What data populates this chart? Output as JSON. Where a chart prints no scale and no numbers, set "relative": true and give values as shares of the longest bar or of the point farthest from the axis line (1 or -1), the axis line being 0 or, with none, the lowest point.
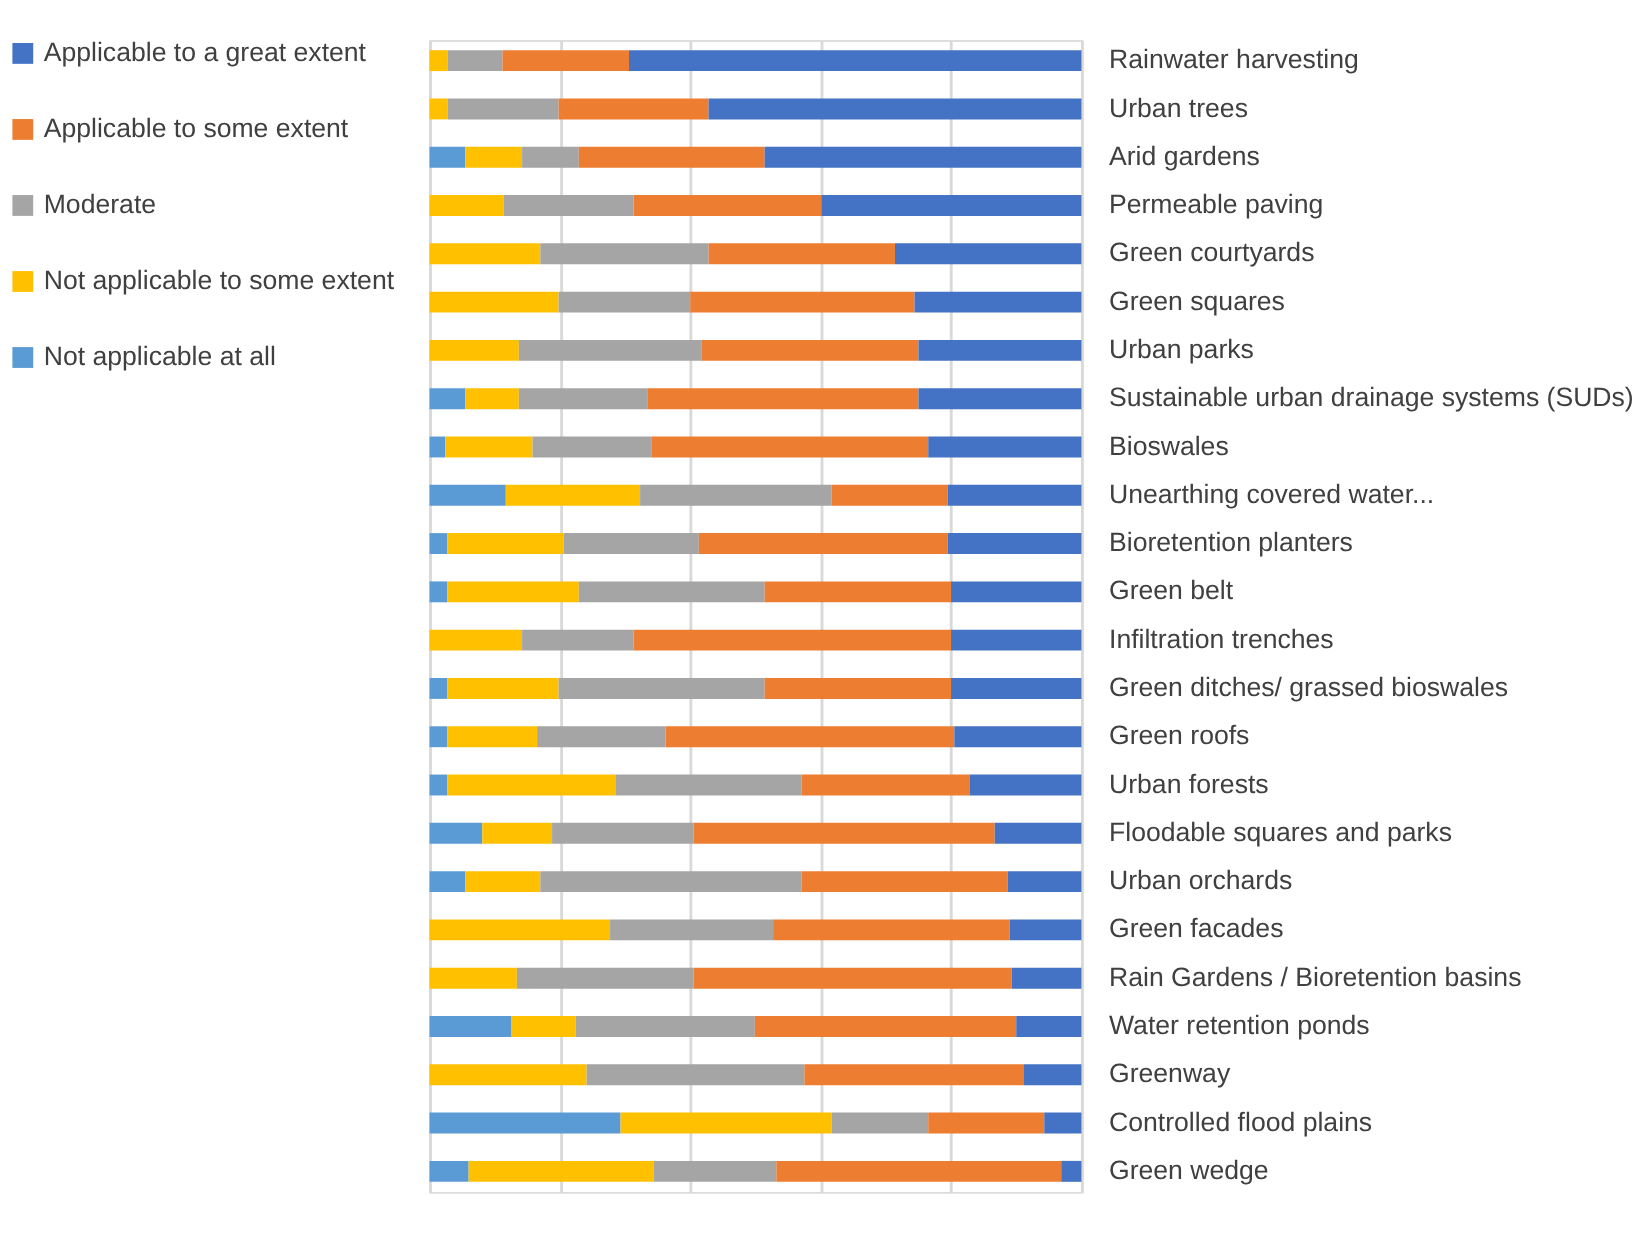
{
  "chart_data": {
    "type": "bar",
    "orientation": "horizontal",
    "stacked": true,
    "relative": true,
    "grid": "x",
    "legend": "left",
    "categories": [
      "Rainwater harvesting",
      "Urban trees",
      "Arid gardens",
      "Permeable paving",
      "Green courtyards",
      "Green squares",
      "Urban parks",
      "Sustainable urban drainage systems (SUDs)",
      "Bioswales",
      "Unearthing covered water...",
      "Bioretention planters",
      "Green belt",
      "Infiltration trenches",
      "Green ditches/ grassed bioswales",
      "Green roofs",
      "Urban forests",
      "Floodable squares and parks",
      "Urban orchards",
      "Green facades",
      "Rain Gardens / Bioretention basins",
      "Water retention ponds",
      "Greenway",
      "Controlled flood plains",
      "Green wedge"
    ],
    "series": [
      {
        "name": "Not applicable at all",
        "color": "#5b9bd5",
        "values": [
          0,
          0,
          0.055,
          0,
          0,
          0,
          0,
          0.055,
          0.024,
          0.117,
          0.027,
          0.027,
          0,
          0.027,
          0.027,
          0.027,
          0.081,
          0.055,
          0,
          0,
          0.125,
          0,
          0.293,
          0.06
        ]
      },
      {
        "name": "Not applicable to some extent",
        "color": "#ffc000",
        "values": [
          0.028,
          0.028,
          0.087,
          0.114,
          0.17,
          0.198,
          0.137,
          0.082,
          0.134,
          0.206,
          0.179,
          0.202,
          0.142,
          0.171,
          0.138,
          0.258,
          0.107,
          0.115,
          0.277,
          0.134,
          0.099,
          0.241,
          0.324,
          0.284
        ]
      },
      {
        "name": "Moderate",
        "color": "#a5a5a5",
        "values": [
          0.084,
          0.17,
          0.087,
          0.199,
          0.258,
          0.202,
          0.28,
          0.197,
          0.183,
          0.294,
          0.207,
          0.285,
          0.171,
          0.316,
          0.197,
          0.286,
          0.217,
          0.401,
          0.25,
          0.271,
          0.275,
          0.334,
          0.148,
          0.188
        ]
      },
      {
        "name": "Applicable to some extent",
        "color": "#ed7d31",
        "values": [
          0.194,
          0.23,
          0.285,
          0.288,
          0.286,
          0.344,
          0.333,
          0.416,
          0.424,
          0.178,
          0.382,
          0.286,
          0.487,
          0.286,
          0.443,
          0.258,
          0.462,
          0.316,
          0.363,
          0.488,
          0.401,
          0.336,
          0.178,
          0.437
        ]
      },
      {
        "name": "Applicable to a great extent",
        "color": "#4472c4",
        "values": [
          0.694,
          0.572,
          0.486,
          0.399,
          0.286,
          0.256,
          0.25,
          0.25,
          0.235,
          0.205,
          0.205,
          0.2,
          0.2,
          0.2,
          0.195,
          0.171,
          0.133,
          0.113,
          0.11,
          0.107,
          0.1,
          0.089,
          0.057,
          0.031
        ]
      }
    ]
  }
}
